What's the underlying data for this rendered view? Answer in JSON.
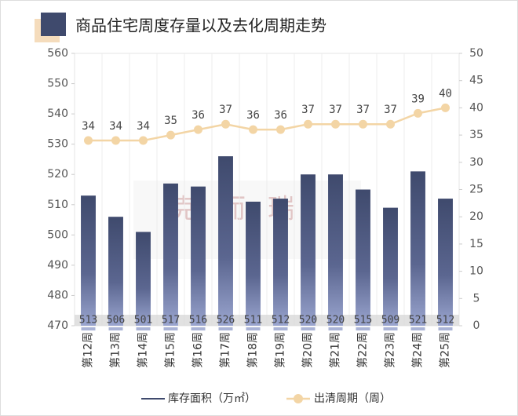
{
  "chart_data": {
    "type": "bar-line",
    "title": "商品住宅周度存量以及去化周期走势",
    "watermark": "克而瑞",
    "categories": [
      "第12周",
      "第13周",
      "第14周",
      "第15周",
      "第16周",
      "第17周",
      "第18周",
      "第19周",
      "第20周",
      "第21周",
      "第22周",
      "第23周",
      "第24周",
      "第25周"
    ],
    "series": [
      {
        "name": "库存面积（万㎡）",
        "type": "bar",
        "color": "#3f4a6d",
        "axis": "y",
        "values": [
          513,
          506,
          501,
          517,
          516,
          526,
          511,
          512,
          520,
          520,
          515,
          509,
          521,
          512
        ]
      },
      {
        "name": "出清周期（周）",
        "type": "line",
        "color": "#f3d5a5",
        "axis": "y2",
        "values": [
          34,
          34,
          34,
          35,
          36,
          37,
          36,
          36,
          37,
          37,
          37,
          37,
          39,
          40
        ]
      }
    ],
    "ylim": [
      470,
      560
    ],
    "yticks": [
      470,
      480,
      490,
      500,
      510,
      520,
      530,
      540,
      550,
      560
    ],
    "y2lim": [
      0,
      50
    ],
    "y2ticks": [
      0,
      5,
      10,
      15,
      20,
      25,
      30,
      35,
      40,
      45,
      50
    ],
    "grid": false,
    "legend": "bottom"
  }
}
